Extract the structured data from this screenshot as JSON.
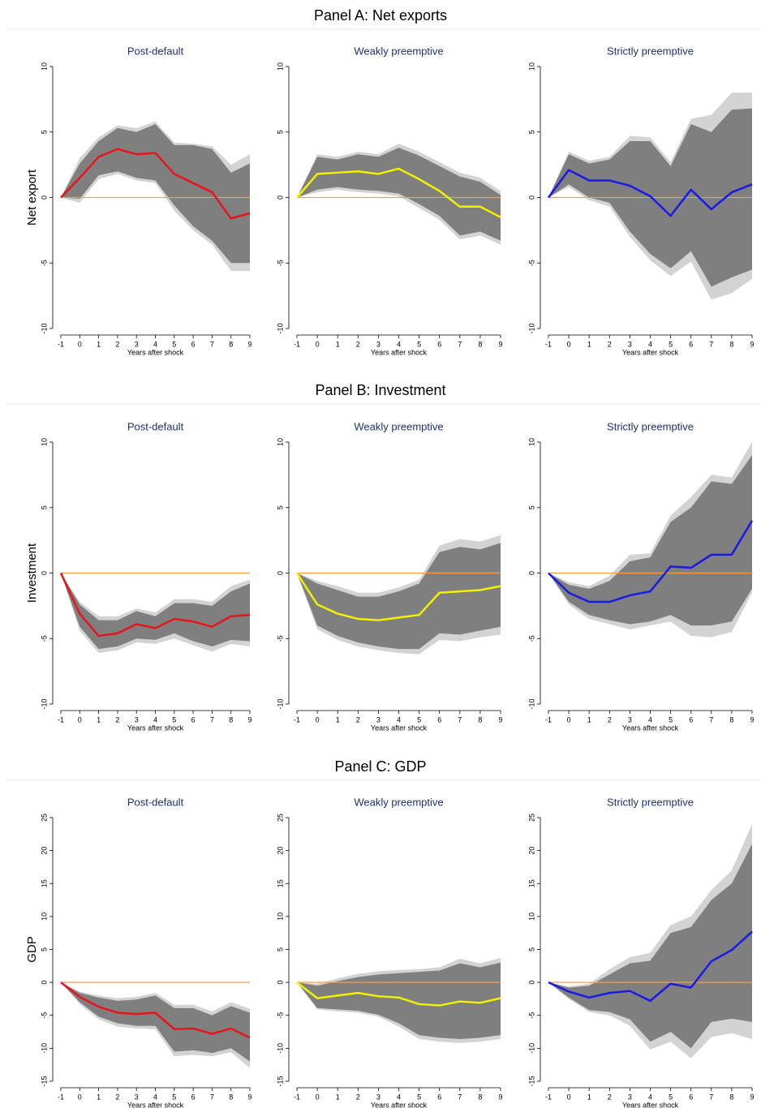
{
  "panels": [
    {
      "title": "Panel A: Net exports"
    },
    {
      "title": "Panel B: Investment"
    },
    {
      "title": "Panel C: GDP"
    }
  ],
  "chart_data": [
    {
      "type": "line",
      "title": "Post-default",
      "xlabel": "Years after shock",
      "ylabel": "Net export",
      "x": [
        -1,
        0,
        1,
        2,
        3,
        4,
        5,
        6,
        7,
        8,
        9
      ],
      "xlim": [
        -1,
        9
      ],
      "xticks": [
        -1,
        0,
        1,
        2,
        3,
        4,
        5,
        6,
        7,
        8,
        9
      ],
      "ylim": [
        -10,
        10
      ],
      "yticks": [
        -10,
        -5,
        0,
        5,
        10
      ],
      "baseline_color": "#f0a04b",
      "bands": [
        {
          "color": "#d3d3d3",
          "upper": [
            0,
            3.0,
            4.6,
            5.5,
            5.3,
            5.8,
            4.2,
            4.1,
            3.9,
            2.5,
            3.3
          ],
          "lower": [
            0,
            -0.4,
            1.4,
            1.8,
            1.3,
            1.1,
            -1.0,
            -2.5,
            -3.6,
            -5.6,
            -5.6
          ]
        },
        {
          "color": "#7f7f7f",
          "upper": [
            0,
            2.6,
            4.3,
            5.3,
            5.0,
            5.6,
            4.0,
            4.0,
            3.7,
            1.9,
            2.6
          ],
          "lower": [
            0,
            -0.1,
            1.7,
            2.0,
            1.5,
            1.3,
            -0.6,
            -2.2,
            -3.3,
            -5.0,
            -5.0
          ]
        }
      ],
      "series": [
        {
          "color": "#e8141c",
          "values": [
            0,
            1.5,
            3.1,
            3.7,
            3.3,
            3.4,
            1.8,
            1.1,
            0.4,
            -1.6,
            -1.2
          ]
        }
      ]
    },
    {
      "type": "line",
      "title": "Weakly preemptive",
      "xlabel": "Years after shock",
      "x": [
        -1,
        0,
        1,
        2,
        3,
        4,
        5,
        6,
        7,
        8,
        9
      ],
      "xlim": [
        -1,
        9
      ],
      "xticks": [
        -1,
        0,
        1,
        2,
        3,
        4,
        5,
        6,
        7,
        8,
        9
      ],
      "ylim": [
        -10,
        10
      ],
      "yticks": [
        -10,
        -5,
        0,
        5,
        10
      ],
      "baseline_color": "#f0a04b",
      "bands": [
        {
          "color": "#d3d3d3",
          "upper": [
            0,
            3.3,
            3.1,
            3.5,
            3.3,
            4.1,
            3.5,
            2.7,
            1.9,
            1.5,
            0.5
          ],
          "lower": [
            0,
            0.4,
            0.6,
            0.4,
            0.3,
            0.1,
            -0.8,
            -1.7,
            -3.2,
            -2.9,
            -3.6
          ]
        },
        {
          "color": "#7f7f7f",
          "upper": [
            0,
            3.1,
            2.9,
            3.3,
            3.1,
            3.8,
            3.2,
            2.4,
            1.6,
            1.2,
            0.2
          ],
          "lower": [
            0,
            0.6,
            0.8,
            0.6,
            0.5,
            0.3,
            -0.5,
            -1.4,
            -2.9,
            -2.6,
            -3.3
          ]
        }
      ],
      "series": [
        {
          "color": "#f2f200",
          "values": [
            0,
            1.8,
            1.9,
            2.0,
            1.8,
            2.2,
            1.4,
            0.5,
            -0.7,
            -0.7,
            -1.5
          ]
        }
      ]
    },
    {
      "type": "line",
      "title": "Strictly preemptive",
      "xlabel": "Years after shock",
      "x": [
        -1,
        0,
        1,
        2,
        3,
        4,
        5,
        6,
        7,
        8,
        9
      ],
      "xlim": [
        -1,
        9
      ],
      "xticks": [
        -1,
        0,
        1,
        2,
        3,
        4,
        5,
        6,
        7,
        8,
        9
      ],
      "ylim": [
        -10,
        10
      ],
      "yticks": [
        -10,
        -5,
        0,
        5,
        10
      ],
      "baseline_color": "#f0a04b",
      "bands": [
        {
          "color": "#d3d3d3",
          "upper": [
            0,
            3.5,
            2.8,
            3.1,
            4.7,
            4.6,
            2.7,
            6.0,
            6.3,
            8.0,
            8.0
          ],
          "lower": [
            0,
            0.8,
            -0.2,
            -0.7,
            -3.0,
            -4.8,
            -6.0,
            -4.9,
            -7.8,
            -7.3,
            -6.2
          ]
        },
        {
          "color": "#7f7f7f",
          "upper": [
            0,
            3.3,
            2.6,
            2.9,
            4.3,
            4.3,
            2.4,
            5.6,
            5.0,
            6.7,
            6.8
          ],
          "lower": [
            0,
            1.0,
            0,
            -0.4,
            -2.6,
            -4.3,
            -5.4,
            -4.1,
            -6.8,
            -6.1,
            -5.5
          ]
        }
      ],
      "series": [
        {
          "color": "#1a1ae6",
          "values": [
            0,
            2.1,
            1.3,
            1.3,
            0.9,
            0.1,
            -1.4,
            0.6,
            -0.9,
            0.4,
            1.0
          ]
        }
      ]
    },
    {
      "type": "line",
      "title": "Post-default",
      "xlabel": "Years after shock",
      "ylabel": "Investment",
      "x": [
        -1,
        0,
        1,
        2,
        3,
        4,
        5,
        6,
        7,
        8,
        9
      ],
      "xlim": [
        -1,
        9
      ],
      "xticks": [
        -1,
        0,
        1,
        2,
        3,
        4,
        5,
        6,
        7,
        8,
        9
      ],
      "ylim": [
        -10,
        10
      ],
      "yticks": [
        -10,
        -5,
        0,
        5,
        10
      ],
      "baseline_color": "#f0a04b",
      "bands": [
        {
          "color": "#d3d3d3",
          "upper": [
            0,
            -2.2,
            -3.3,
            -3.3,
            -2.7,
            -3.0,
            -2.0,
            -2.0,
            -2.2,
            -1.0,
            -0.5
          ],
          "lower": [
            0,
            -4.4,
            -6.1,
            -5.9,
            -5.3,
            -5.4,
            -5.0,
            -5.5,
            -6.0,
            -5.4,
            -5.6
          ]
        },
        {
          "color": "#7f7f7f",
          "upper": [
            0,
            -2.4,
            -3.6,
            -3.6,
            -2.9,
            -3.3,
            -2.3,
            -2.3,
            -2.5,
            -1.4,
            -0.8
          ],
          "lower": [
            0,
            -4.1,
            -5.8,
            -5.6,
            -5.0,
            -5.1,
            -4.6,
            -5.2,
            -5.6,
            -5.1,
            -5.2
          ]
        }
      ],
      "series": [
        {
          "color": "#e8141c",
          "values": [
            0,
            -3.1,
            -4.8,
            -4.6,
            -3.9,
            -4.2,
            -3.5,
            -3.7,
            -4.1,
            -3.3,
            -3.2
          ]
        }
      ]
    },
    {
      "type": "line",
      "title": "Weakly preemptive",
      "xlabel": "Years after shock",
      "x": [
        -1,
        0,
        1,
        2,
        3,
        4,
        5,
        6,
        7,
        8,
        9
      ],
      "xlim": [
        -1,
        9
      ],
      "xticks": [
        -1,
        0,
        1,
        2,
        3,
        4,
        5,
        6,
        7,
        8,
        9
      ],
      "ylim": [
        -10,
        10
      ],
      "yticks": [
        -10,
        -5,
        0,
        5,
        10
      ],
      "baseline_color": "#f0a04b",
      "bands": [
        {
          "color": "#d3d3d3",
          "upper": [
            0,
            -0.6,
            -1.0,
            -1.5,
            -1.5,
            -1.1,
            -0.5,
            2.1,
            2.6,
            2.4,
            2.9
          ],
          "lower": [
            0,
            -4.3,
            -5.1,
            -5.6,
            -5.9,
            -6.1,
            -6.2,
            -5.1,
            -5.2,
            -4.9,
            -4.7
          ]
        },
        {
          "color": "#7f7f7f",
          "upper": [
            0,
            -0.8,
            -1.3,
            -1.8,
            -1.8,
            -1.4,
            -0.8,
            1.6,
            2.0,
            1.8,
            2.3
          ],
          "lower": [
            0,
            -4.0,
            -4.8,
            -5.3,
            -5.6,
            -5.8,
            -5.8,
            -4.6,
            -4.7,
            -4.4,
            -4.1
          ]
        }
      ],
      "series": [
        {
          "color": "#f2f200",
          "values": [
            0,
            -2.4,
            -3.1,
            -3.5,
            -3.6,
            -3.4,
            -3.2,
            -1.5,
            -1.4,
            -1.3,
            -1.0
          ]
        }
      ]
    },
    {
      "type": "line",
      "title": "Strictly preemptive",
      "xlabel": "Years after shock",
      "x": [
        -1,
        0,
        1,
        2,
        3,
        4,
        5,
        6,
        7,
        8,
        9
      ],
      "xlim": [
        -1,
        9
      ],
      "xticks": [
        -1,
        0,
        1,
        2,
        3,
        4,
        5,
        6,
        7,
        8,
        9
      ],
      "ylim": [
        -10,
        10
      ],
      "yticks": [
        -10,
        -5,
        0,
        5,
        10
      ],
      "baseline_color": "#f0a04b",
      "bands": [
        {
          "color": "#d3d3d3",
          "upper": [
            0,
            -0.7,
            -1.0,
            -0.2,
            1.4,
            1.5,
            4.4,
            5.8,
            7.5,
            7.3,
            10.0
          ],
          "lower": [
            0,
            -2.4,
            -3.5,
            -3.9,
            -4.3,
            -4.0,
            -3.7,
            -4.8,
            -4.9,
            -4.5,
            -1.5
          ]
        },
        {
          "color": "#7f7f7f",
          "upper": [
            0,
            -0.9,
            -1.2,
            -0.6,
            0.9,
            1.2,
            3.9,
            5.0,
            7.0,
            6.8,
            9.0
          ],
          "lower": [
            0,
            -2.2,
            -3.2,
            -3.6,
            -3.9,
            -3.7,
            -3.2,
            -4.0,
            -4.0,
            -3.7,
            -1.2
          ]
        }
      ],
      "series": [
        {
          "color": "#1a1ae6",
          "values": [
            0,
            -1.5,
            -2.2,
            -2.2,
            -1.7,
            -1.4,
            0.5,
            0.4,
            1.4,
            1.4,
            4.0
          ]
        }
      ]
    },
    {
      "type": "line",
      "title": "Post-default",
      "xlabel": "Years after shock",
      "ylabel": "GDP",
      "x": [
        -1,
        0,
        1,
        2,
        3,
        4,
        5,
        6,
        7,
        8,
        9
      ],
      "xlim": [
        -1,
        9
      ],
      "xticks": [
        -1,
        0,
        1,
        2,
        3,
        4,
        5,
        6,
        7,
        8,
        9
      ],
      "ylim": [
        -15,
        25
      ],
      "yticks": [
        -15,
        -10,
        -5,
        0,
        5,
        10,
        15,
        20,
        25
      ],
      "baseline_color": "#f0a04b",
      "bands": [
        {
          "color": "#d3d3d3",
          "upper": [
            0,
            -1.4,
            -2.0,
            -2.4,
            -2.2,
            -1.6,
            -3.4,
            -3.4,
            -4.4,
            -3.0,
            -4.0
          ],
          "lower": [
            0,
            -3.3,
            -5.6,
            -6.7,
            -7.0,
            -7.1,
            -11.2,
            -11.0,
            -11.2,
            -10.6,
            -13.0
          ]
        },
        {
          "color": "#7f7f7f",
          "upper": [
            0,
            -1.6,
            -2.3,
            -2.8,
            -2.6,
            -2.0,
            -3.9,
            -3.9,
            -5.0,
            -3.6,
            -4.6
          ],
          "lower": [
            0,
            -3.0,
            -5.2,
            -6.2,
            -6.6,
            -6.6,
            -10.5,
            -10.3,
            -10.7,
            -10.0,
            -12.0
          ]
        }
      ],
      "series": [
        {
          "color": "#e8141c",
          "values": [
            0,
            -2.2,
            -3.7,
            -4.6,
            -4.8,
            -4.6,
            -7.1,
            -7.0,
            -7.8,
            -7.0,
            -8.4
          ]
        }
      ]
    },
    {
      "type": "line",
      "title": "Weakly preemptive",
      "xlabel": "Years after shock",
      "x": [
        -1,
        0,
        1,
        2,
        3,
        4,
        5,
        6,
        7,
        8,
        9
      ],
      "xlim": [
        -1,
        9
      ],
      "xticks": [
        -1,
        0,
        1,
        2,
        3,
        4,
        5,
        6,
        7,
        8,
        9
      ],
      "ylim": [
        -15,
        25
      ],
      "yticks": [
        -15,
        -10,
        -5,
        0,
        5,
        10,
        15,
        20,
        25
      ],
      "baseline_color": "#f0a04b",
      "bands": [
        {
          "color": "#d3d3d3",
          "upper": [
            0,
            -0.2,
            0.6,
            1.3,
            1.7,
            1.9,
            2.0,
            2.3,
            3.6,
            2.9,
            3.7
          ],
          "lower": [
            0,
            -4.1,
            -4.4,
            -4.6,
            -5.2,
            -6.7,
            -8.6,
            -9.0,
            -9.2,
            -9.0,
            -8.6
          ]
        },
        {
          "color": "#7f7f7f",
          "upper": [
            0,
            -0.5,
            0.2,
            0.8,
            1.2,
            1.4,
            1.6,
            1.8,
            2.9,
            2.3,
            3.0
          ],
          "lower": [
            0,
            -3.9,
            -4.1,
            -4.3,
            -4.9,
            -6.2,
            -8.0,
            -8.4,
            -8.6,
            -8.4,
            -8.0
          ]
        }
      ],
      "series": [
        {
          "color": "#f2f200",
          "values": [
            0,
            -2.4,
            -2.0,
            -1.6,
            -2.1,
            -2.3,
            -3.3,
            -3.5,
            -2.9,
            -3.1,
            -2.4
          ]
        }
      ]
    },
    {
      "type": "line",
      "title": "Strictly preemptive",
      "xlabel": "Years after shock",
      "x": [
        -1,
        0,
        1,
        2,
        3,
        4,
        5,
        6,
        7,
        8,
        9
      ],
      "xlim": [
        -1,
        9
      ],
      "xticks": [
        -1,
        0,
        1,
        2,
        3,
        4,
        5,
        6,
        7,
        8,
        9
      ],
      "ylim": [
        -15,
        25
      ],
      "yticks": [
        -15,
        -10,
        -5,
        0,
        5,
        10,
        15,
        20,
        25
      ],
      "baseline_color": "#f0a04b",
      "bands": [
        {
          "color": "#d3d3d3",
          "upper": [
            0,
            -0.6,
            -0.2,
            2.0,
            3.8,
            4.5,
            8.7,
            10.0,
            14.0,
            17.0,
            24.0
          ],
          "lower": [
            0,
            -2.5,
            -4.5,
            -5.0,
            -6.6,
            -10.2,
            -9.0,
            -11.5,
            -8.3,
            -7.7,
            -8.6
          ]
        },
        {
          "color": "#7f7f7f",
          "upper": [
            0,
            -0.8,
            -0.5,
            1.2,
            2.9,
            3.3,
            7.5,
            8.4,
            12.5,
            15.0,
            21.0
          ],
          "lower": [
            0,
            -2.3,
            -4.2,
            -4.5,
            -5.6,
            -9.0,
            -7.5,
            -10.0,
            -6.0,
            -5.5,
            -6.0
          ]
        }
      ],
      "series": [
        {
          "color": "#1a1ae6",
          "values": [
            0,
            -1.4,
            -2.3,
            -1.6,
            -1.3,
            -2.8,
            -0.2,
            -0.8,
            3.2,
            4.9,
            7.7
          ]
        }
      ]
    }
  ]
}
